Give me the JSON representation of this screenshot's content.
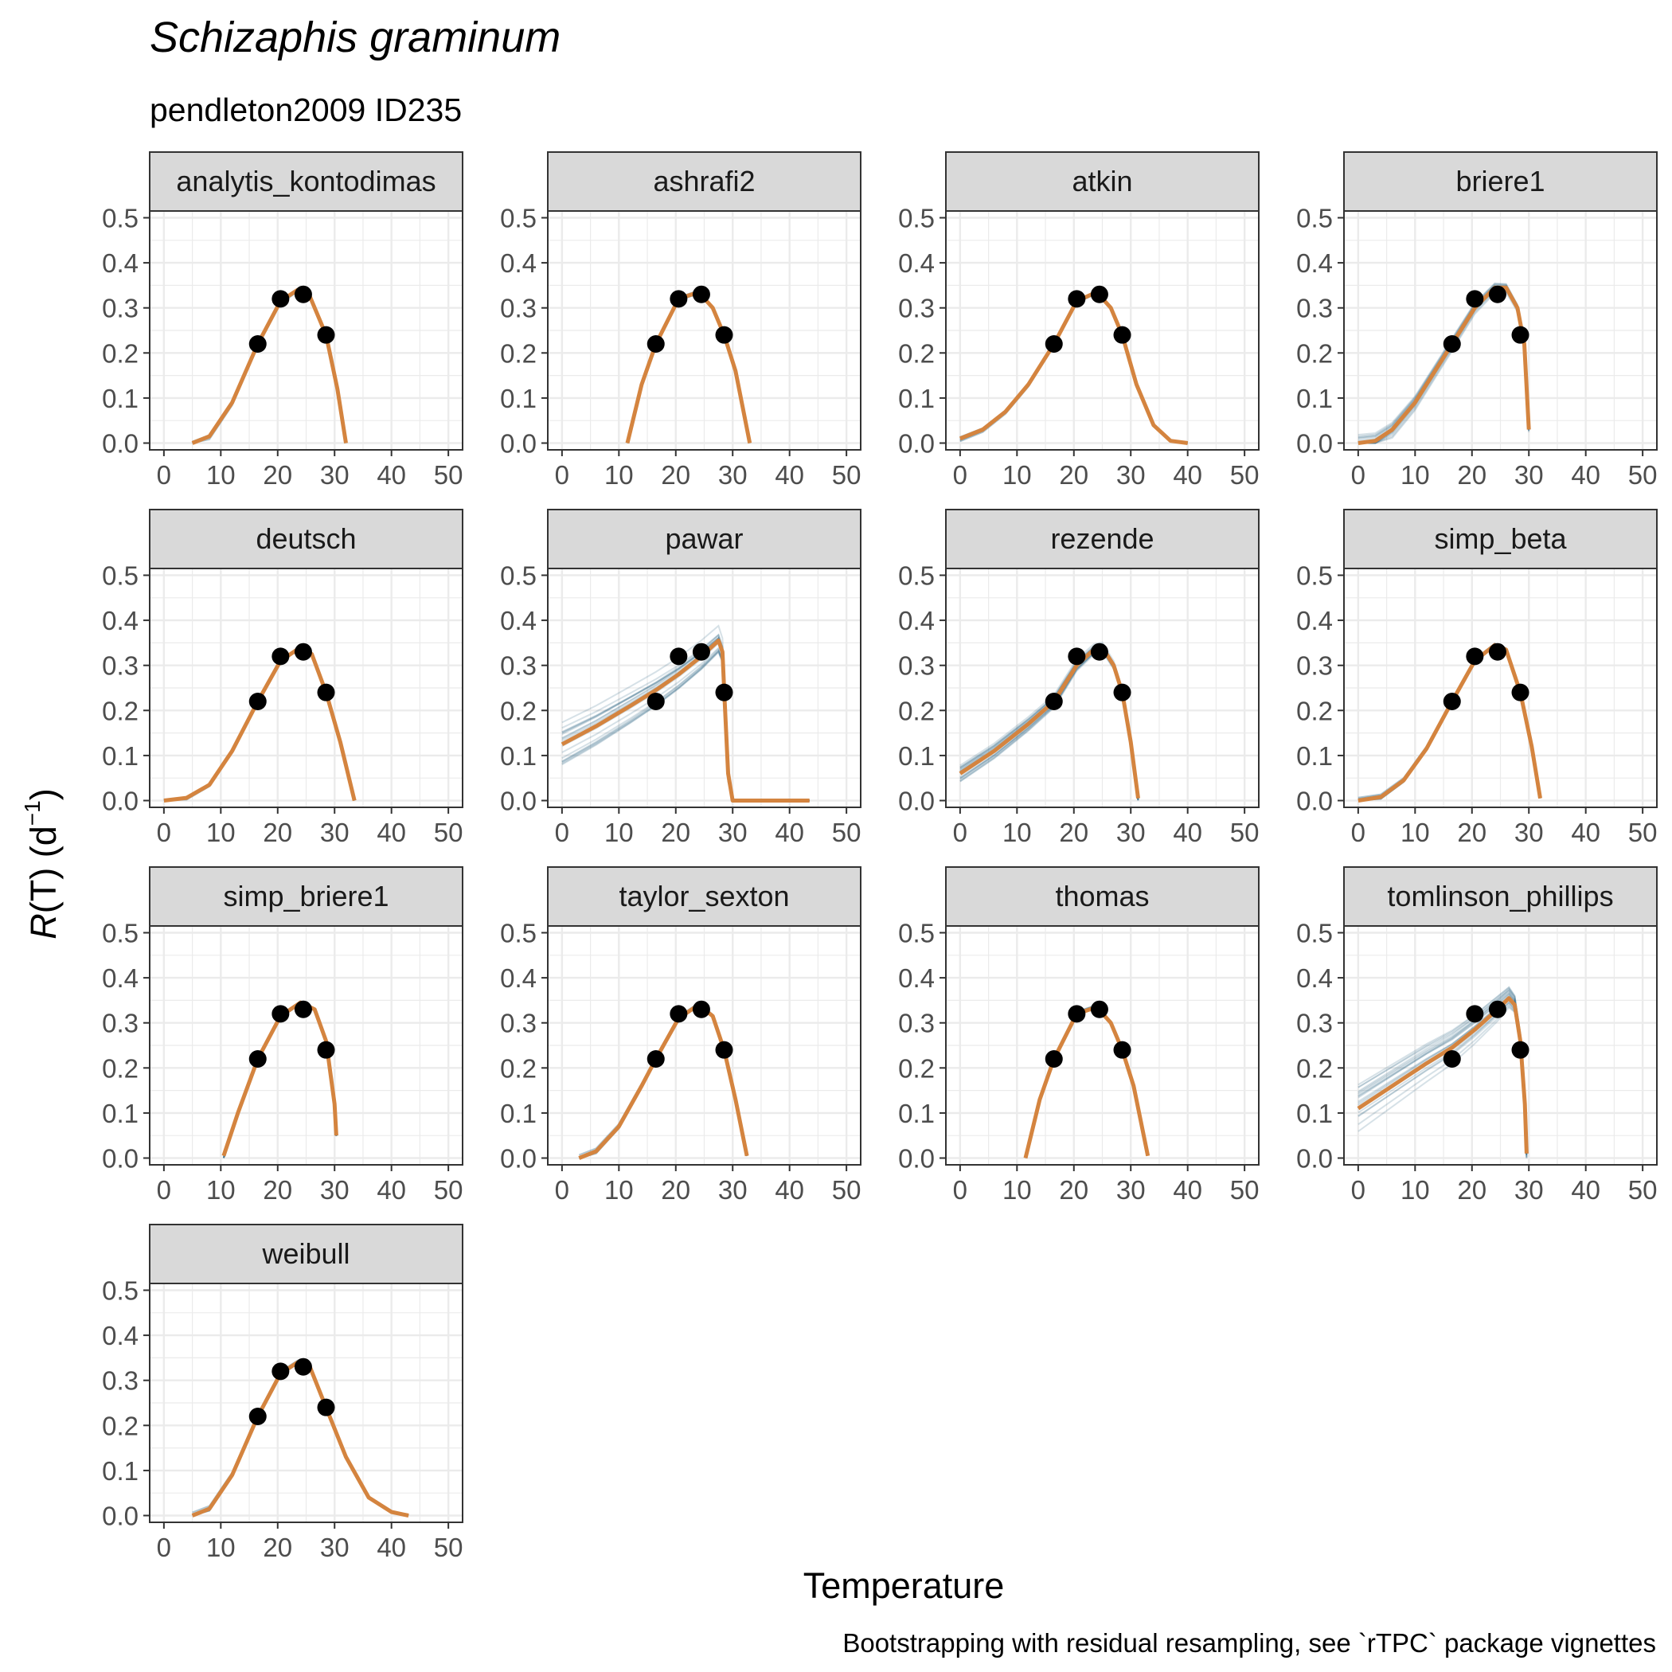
{
  "title": "Schizaphis graminum",
  "subtitle": "pendleton2009 ID235",
  "xlabel": "Temperature",
  "ylabel": {
    "base": "R",
    "rest": "(T) (d",
    "sup": "−1",
    "close": ")"
  },
  "caption": "Bootstrapping with residual resampling, see `rTPC` package vignettes",
  "colors": {
    "fit": "#d4843f",
    "boot": "#1b5a78",
    "points": "#000000",
    "strip_bg": "#d9d9d9",
    "grid": "#ebebeb",
    "panel_border": "#333333"
  },
  "chart_data": {
    "type": "line",
    "facets": [
      "analytis_kontodimas",
      "ashrafi2",
      "atkin",
      "briere1",
      "deutsch",
      "pawar",
      "rezende",
      "simp_beta",
      "simp_briere1",
      "taylor_sexton",
      "thomas",
      "tomlinson_phillips",
      "weibull"
    ],
    "x_ticks": [
      0,
      10,
      20,
      30,
      40,
      50
    ],
    "y_ticks": [
      "0.0",
      "0.1",
      "0.2",
      "0.3",
      "0.4",
      "0.5"
    ],
    "xlim": [
      -2.5,
      52.5
    ],
    "ylim": [
      -0.015,
      0.515
    ],
    "grid": true,
    "observed": {
      "x": [
        16.5,
        20.5,
        24.5,
        28.5
      ],
      "y": [
        0.22,
        0.32,
        0.33,
        0.24
      ]
    },
    "fits": [
      {
        "name": "analytis_kontodimas",
        "x": [
          5,
          8,
          12,
          16.5,
          20.5,
          23.5,
          25.5,
          28.5,
          30.5,
          32
        ],
        "y": [
          0,
          0.015,
          0.09,
          0.22,
          0.315,
          0.34,
          0.33,
          0.24,
          0.12,
          0
        ]
      },
      {
        "name": "ashrafi2",
        "x": [
          11.5,
          14,
          16.5,
          20.5,
          24,
          26.5,
          28.5,
          30.5,
          33
        ],
        "y": [
          0,
          0.13,
          0.22,
          0.32,
          0.335,
          0.3,
          0.24,
          0.16,
          0
        ]
      },
      {
        "name": "atkin",
        "x": [
          0,
          4,
          8,
          12,
          16.5,
          20.5,
          24,
          26.5,
          28.5,
          31,
          34,
          37,
          40
        ],
        "y": [
          0.01,
          0.03,
          0.07,
          0.13,
          0.22,
          0.315,
          0.335,
          0.3,
          0.24,
          0.13,
          0.04,
          0.005,
          0
        ]
      },
      {
        "name": "briere1",
        "x": [
          0,
          3,
          6,
          10,
          16.5,
          20.5,
          24,
          26,
          28,
          29.2,
          30
        ],
        "y": [
          0,
          0.005,
          0.03,
          0.09,
          0.22,
          0.3,
          0.345,
          0.345,
          0.3,
          0.22,
          0.03
        ]
      },
      {
        "name": "deutsch",
        "x": [
          0,
          4,
          8,
          12,
          16.5,
          20.5,
          24,
          26,
          28.5,
          31,
          33.5
        ],
        "y": [
          0,
          0.006,
          0.035,
          0.11,
          0.22,
          0.31,
          0.34,
          0.325,
          0.24,
          0.13,
          0
        ]
      },
      {
        "name": "pawar",
        "x": [
          0,
          6,
          12,
          16.5,
          20.5,
          24.5,
          27.5,
          28.2,
          28.6,
          29.2,
          30,
          35,
          43.5
        ],
        "y": [
          0.125,
          0.165,
          0.21,
          0.245,
          0.28,
          0.32,
          0.355,
          0.33,
          0.22,
          0.06,
          0,
          0,
          0
        ]
      },
      {
        "name": "rezende",
        "x": [
          0,
          6,
          12,
          16.5,
          20.5,
          23.5,
          25,
          27,
          28.5,
          30,
          31.3
        ],
        "y": [
          0.06,
          0.11,
          0.17,
          0.22,
          0.3,
          0.335,
          0.34,
          0.3,
          0.24,
          0.13,
          0.005
        ]
      },
      {
        "name": "simp_beta",
        "x": [
          0,
          4,
          8,
          12,
          16.5,
          20.5,
          24,
          26,
          28.5,
          30.5,
          32
        ],
        "y": [
          0,
          0.008,
          0.045,
          0.115,
          0.22,
          0.31,
          0.345,
          0.335,
          0.24,
          0.12,
          0.005
        ]
      },
      {
        "name": "simp_briere1",
        "x": [
          10.5,
          13,
          16.5,
          20.5,
          24,
          26.5,
          28.5,
          30,
          30.3
        ],
        "y": [
          0.005,
          0.1,
          0.22,
          0.315,
          0.345,
          0.33,
          0.26,
          0.12,
          0.05
        ]
      },
      {
        "name": "taylor_sexton",
        "x": [
          3,
          6,
          10,
          14,
          16.5,
          20.5,
          24,
          26.5,
          28.5,
          30.5,
          32.5
        ],
        "y": [
          0,
          0.015,
          0.07,
          0.16,
          0.22,
          0.31,
          0.34,
          0.315,
          0.24,
          0.13,
          0.005
        ]
      },
      {
        "name": "thomas",
        "x": [
          11.5,
          14,
          16.5,
          20.5,
          24,
          26.5,
          28.5,
          30.5,
          33
        ],
        "y": [
          0,
          0.13,
          0.22,
          0.32,
          0.335,
          0.3,
          0.24,
          0.16,
          0.005
        ]
      },
      {
        "name": "tomlinson_phillips",
        "x": [
          0,
          6,
          12,
          16.5,
          20.5,
          24.5,
          26.5,
          27.5,
          28.5,
          29.3,
          29.6
        ],
        "y": [
          0.11,
          0.16,
          0.21,
          0.245,
          0.285,
          0.33,
          0.355,
          0.34,
          0.26,
          0.12,
          0.01
        ]
      },
      {
        "name": "weibull",
        "x": [
          5,
          8,
          12,
          16.5,
          20.5,
          23.5,
          25.5,
          28.5,
          32,
          36,
          40,
          43
        ],
        "y": [
          0,
          0.015,
          0.09,
          0.22,
          0.315,
          0.34,
          0.335,
          0.24,
          0.13,
          0.04,
          0.008,
          0
        ]
      }
    ]
  }
}
